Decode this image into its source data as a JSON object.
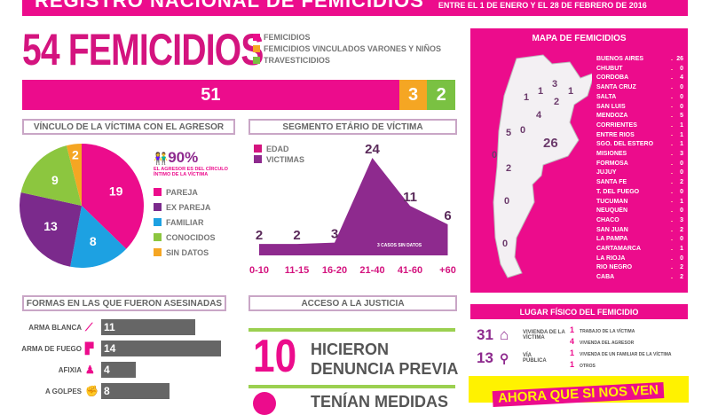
{
  "header": {
    "title": "REGISTRO NACIONAL DE FEMICIDIOS",
    "subtitle": "ENTRE EL 1 DE ENERO Y EL 28 DE FEBRERO DE 2016"
  },
  "total": {
    "headline": "54 FEMICIDIOS",
    "legend": [
      {
        "label": "FEMICIDIOS",
        "color": "#ec0c8c",
        "value": "51"
      },
      {
        "label": "FEMICIDIOS VINCULADOS VARONES Y NIÑOS",
        "color": "#f5a623",
        "value": "3"
      },
      {
        "label": "TRAVESTICIDIOS",
        "color": "#7ac142",
        "value": "2"
      }
    ]
  },
  "vinculo": {
    "title": "VÍNCULO DE LA VÍCTIMA CON EL AGRESOR",
    "percent": "90%",
    "percent_note": "EL AGRESOR ES DEL CÍRCULO ÍNTIMO DE LA VÍCTIMA",
    "chart_data": {
      "type": "pie",
      "categories": [
        "PAREJA",
        "FAMILIAR",
        "EX PAREJA",
        "CONOCIDOS",
        "SIN DATOS"
      ],
      "values": [
        19,
        8,
        13,
        9,
        2
      ],
      "colors": [
        "#ec0c8c",
        "#1da1e2",
        "#7b2a8c",
        "#8cc63f",
        "#f5a623"
      ]
    },
    "legend": [
      {
        "label": "PAREJA",
        "color": "#ec0c8c"
      },
      {
        "label": "EX PAREJA",
        "color": "#7b2a8c"
      },
      {
        "label": "FAMILIAR",
        "color": "#1da1e2"
      },
      {
        "label": "CONOCIDOS",
        "color": "#8cc63f"
      },
      {
        "label": "SIN DATOS",
        "color": "#f5a623"
      }
    ]
  },
  "edad": {
    "title": "SEGMENTO ETÁRIO DE VÍCTIMA",
    "legend": [
      {
        "label": "EDAD",
        "color": "#d4147f"
      },
      {
        "label": "VICTIMAS",
        "color": "#8e2a8e"
      }
    ],
    "note": "3 CASOS SIN DATOS",
    "chart_data": {
      "type": "area",
      "categories": [
        "0-10",
        "11-15",
        "16-20",
        "21-40",
        "41-60",
        "+60"
      ],
      "values": [
        2,
        2,
        3,
        24,
        11,
        6
      ],
      "ylim": [
        0,
        24
      ]
    }
  },
  "mapa": {
    "title": "MAPA DE FEMICIDIOS",
    "provincias": [
      {
        "name": "BUENOS AIRES",
        "value": "26"
      },
      {
        "name": "CHUBUT",
        "value": "0"
      },
      {
        "name": "CORDOBA",
        "value": "4"
      },
      {
        "name": "SANTA CRUZ",
        "value": "0"
      },
      {
        "name": "SALTA",
        "value": "0"
      },
      {
        "name": "SAN LUIS",
        "value": "0"
      },
      {
        "name": "MENDOZA",
        "value": "5"
      },
      {
        "name": "CORRIENTES",
        "value": "1"
      },
      {
        "name": "ENTRE RIOS",
        "value": "1"
      },
      {
        "name": "SGO. DEL ESTERO",
        "value": "1"
      },
      {
        "name": "MISIONES",
        "value": "3"
      },
      {
        "name": "FORMOSA",
        "value": "0"
      },
      {
        "name": "JUJUY",
        "value": "0"
      },
      {
        "name": "SANTA FE",
        "value": "2"
      },
      {
        "name": "T. DEL FUEGO",
        "value": "0"
      },
      {
        "name": "TUCUMAN",
        "value": "1"
      },
      {
        "name": "NEUQUÉN",
        "value": "0"
      },
      {
        "name": "CHACO",
        "value": "3"
      },
      {
        "name": "SAN JUAN",
        "value": "2"
      },
      {
        "name": "LA PAMPA",
        "value": "0"
      },
      {
        "name": "CARTAMARCA",
        "value": "1"
      },
      {
        "name": "LA RIOJA",
        "value": "0"
      },
      {
        "name": "RIO NEGRO",
        "value": "2"
      },
      {
        "name": "CABA",
        "value": "2"
      }
    ],
    "map_labels": [
      "26",
      "5",
      "4",
      "3",
      "2",
      "2",
      "1",
      "1",
      "1",
      "0",
      "0",
      "0",
      "0"
    ]
  },
  "formas": {
    "title": "FORMAS EN LAS QUE FUERON ASESINADAS",
    "chart_data": {
      "type": "bar",
      "categories": [
        "ARMA BLANCA",
        "ARMA DE FUEGO",
        "AFIXIA",
        "A GOLPES"
      ],
      "values": [
        11,
        14,
        4,
        8
      ],
      "icons": [
        "knife-icon",
        "gun-icon",
        "asphyxia-icon",
        "fist-icon"
      ]
    }
  },
  "justicia": {
    "title": "ACCESO A LA JUSTICIA",
    "items": [
      {
        "number": "10",
        "text1": "HICIERON",
        "text2": "DENUNCIA PREVIA"
      },
      {
        "number": "",
        "text1": "TENÍAN MEDIDAS",
        "text2": ""
      }
    ]
  },
  "lugar": {
    "title": "LUGAR FÍSICO DEL FEMICIDIO",
    "main": [
      {
        "number": "31",
        "label": "VIVIENDA DE LA VÍCTIMA",
        "icon": "house-icon"
      },
      {
        "number": "13",
        "label": "VÍA PÚBLICA",
        "icon": "road-icon"
      }
    ],
    "others": [
      {
        "number": "1",
        "label": "TRABAJO DE LA VÍCTIMA"
      },
      {
        "number": "4",
        "label": "VIVIENDA DEL AGRESOR"
      },
      {
        "number": "1",
        "label": "VIVIENDA DE UN FAMILIAR DE LA VÍCTIMA"
      },
      {
        "number": "1",
        "label": "OTROS"
      }
    ]
  },
  "banner": {
    "text": "AHORA QUE SI NOS VEN"
  }
}
